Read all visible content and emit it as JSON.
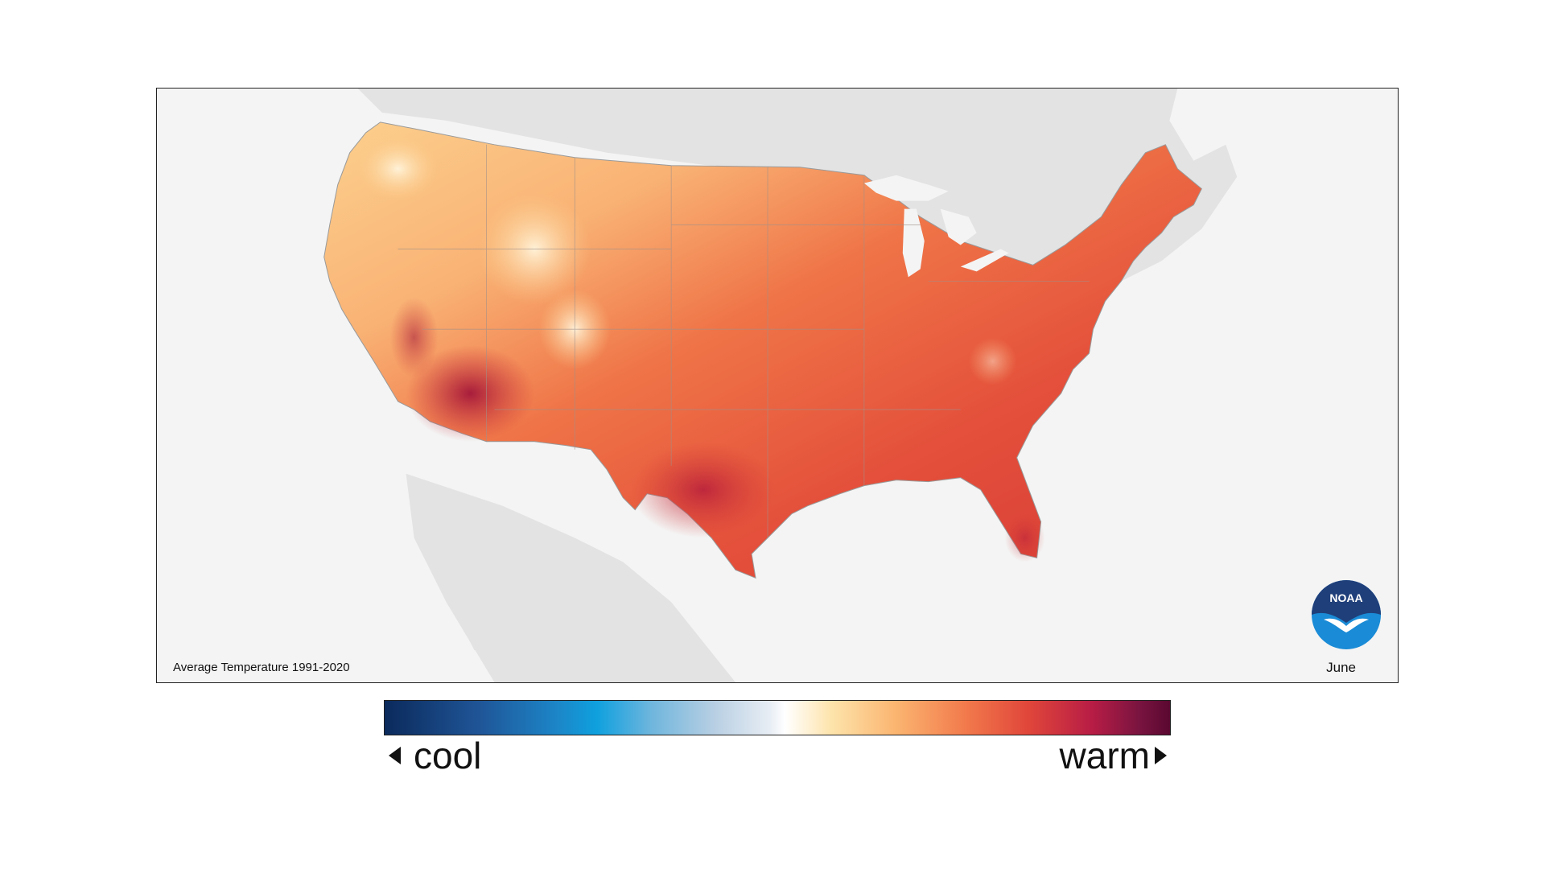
{
  "map": {
    "caption": "Average Temperature 1991-2020",
    "month": "June",
    "logo_text": "NOAA"
  },
  "legend": {
    "cool_label": "cool",
    "warm_label": "warm"
  },
  "colors": {
    "background_land": "#e3e3e3",
    "water": "#f4f4f4",
    "cool_end": "#0b2a5c",
    "neutral": "#ffffff",
    "warm_end": "#5a0830",
    "noaa_blue": "#1f4d8f",
    "noaa_light_blue": "#1a8bd6"
  }
}
